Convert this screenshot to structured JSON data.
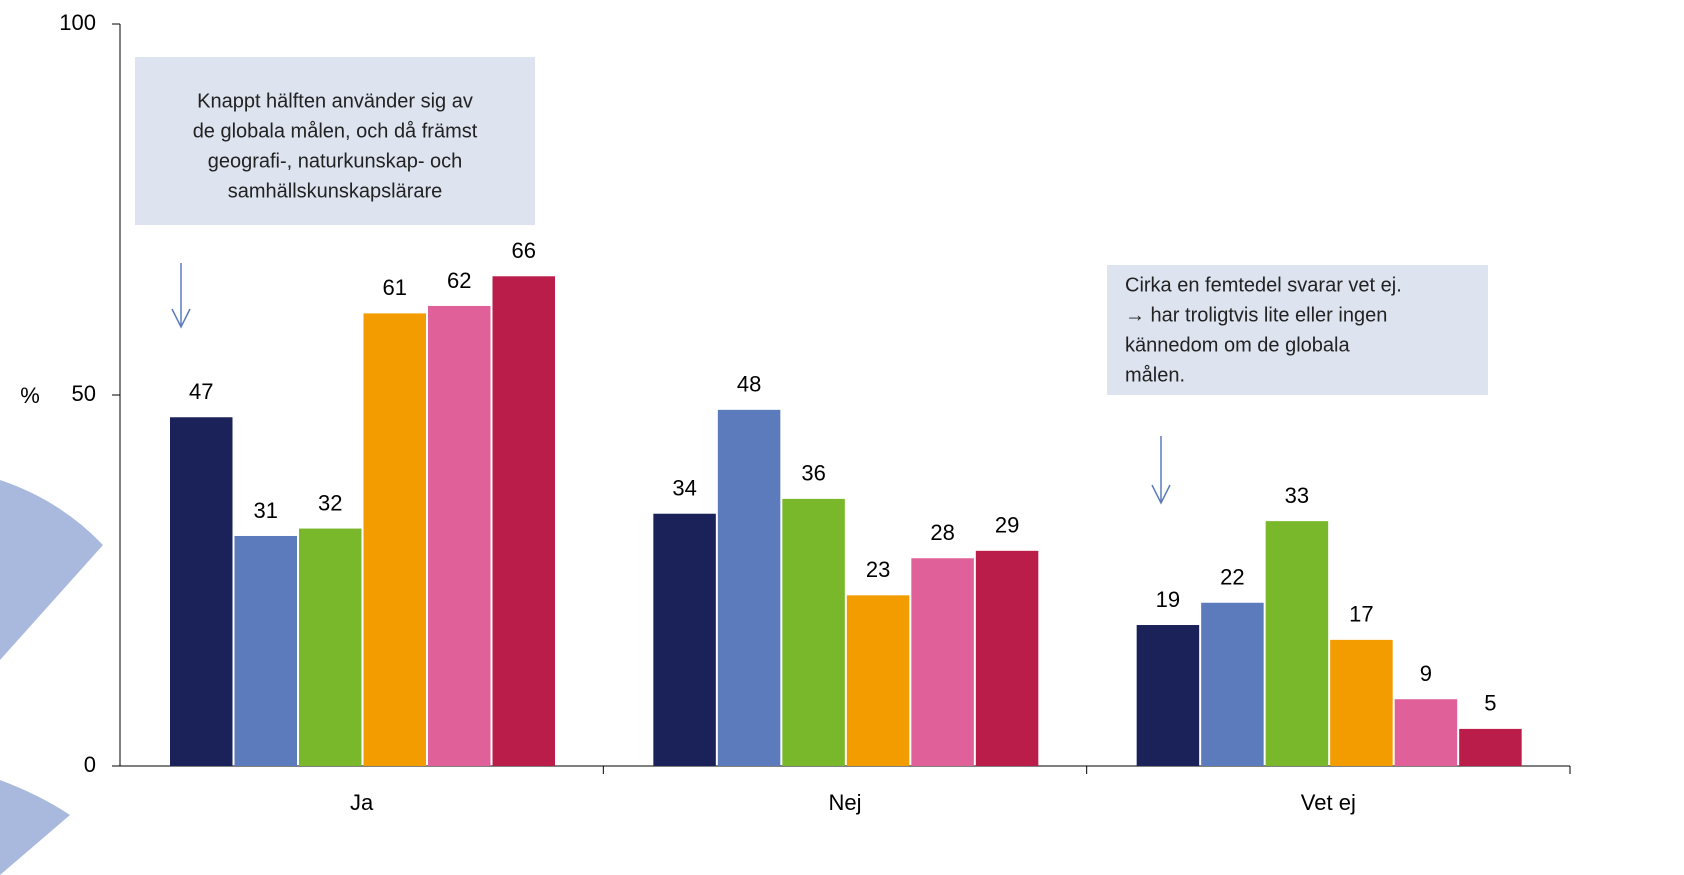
{
  "chart_data": {
    "type": "bar",
    "y_label": "%",
    "categories": [
      "Ja",
      "Nej",
      "Vet ej"
    ],
    "series": [
      {
        "color": "#1b2259",
        "values": [
          47,
          34,
          19
        ]
      },
      {
        "color": "#5b7bbd",
        "values": [
          31,
          48,
          22
        ]
      },
      {
        "color": "#78b82a",
        "values": [
          32,
          36,
          33
        ]
      },
      {
        "color": "#f39c00",
        "values": [
          61,
          23,
          17
        ]
      },
      {
        "color": "#e0609a",
        "values": [
          62,
          28,
          9
        ]
      },
      {
        "color": "#bb1d4a",
        "values": [
          66,
          29,
          5
        ]
      }
    ],
    "ylim": [
      0,
      100
    ],
    "yticks": [
      0,
      50,
      100
    ],
    "grid": false,
    "data_labels": true,
    "annotations": [
      {
        "lines": [
          "Knappt hälften använder sig av",
          "de globala målen, och då främst",
          "geografi-, naturkunskap- och",
          "samhällskunskapslärare"
        ]
      },
      {
        "lines": [
          "Cirka en femtedel svarar vet ej.",
          "→ har troligtvis lite eller ingen",
          "kännedom om de globala",
          "målen."
        ]
      }
    ]
  }
}
